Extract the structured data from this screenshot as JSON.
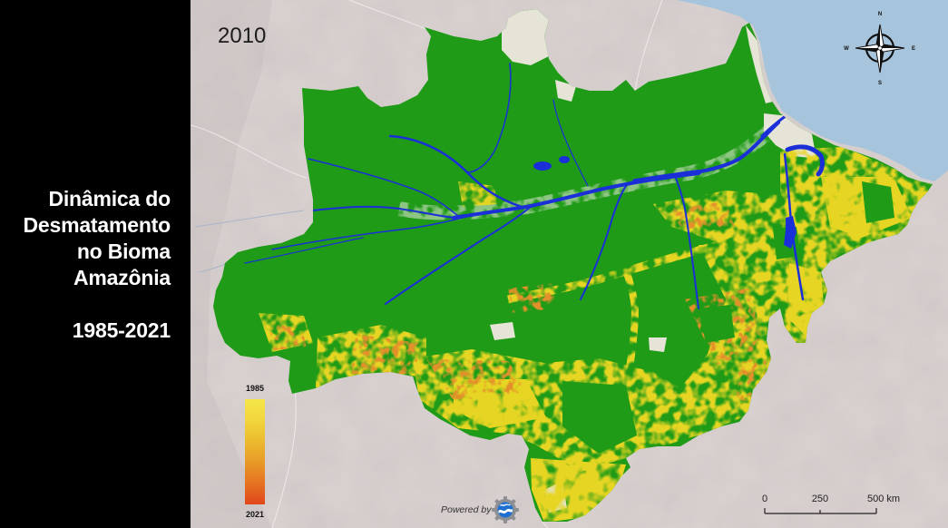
{
  "panel": {
    "title_lines": [
      "Dinâmica do",
      "Desmatamento",
      "no Bioma",
      "Amazônia"
    ],
    "period": "1985-2021"
  },
  "map": {
    "year": "2010"
  },
  "legend": {
    "start_label": "1985",
    "end_label": "2021",
    "colors": [
      "#f5e64a",
      "#f1d63c",
      "#ecba2f",
      "#e89a27",
      "#e57222",
      "#e2461b"
    ]
  },
  "compass": {
    "icon": "compass-rose-icon",
    "north": "N",
    "east": "E",
    "south": "S",
    "west": "W"
  },
  "scale_bar": {
    "labels": [
      "0",
      "250",
      "500 km"
    ]
  },
  "attribution": {
    "text": "Powered by",
    "logo_icon": "earth-engine-logo-icon"
  },
  "colors": {
    "panel_background": "#000000",
    "panel_text": "#ffffff",
    "terrain": "#d8d0cf",
    "ocean": "#a6c4dc",
    "forest": "#1f9b17",
    "deforestation_early": "#e6d522",
    "deforestation_late": "#e4902a",
    "water": "#1b2fd9",
    "non_forest_natural": "#e6e4d6"
  }
}
